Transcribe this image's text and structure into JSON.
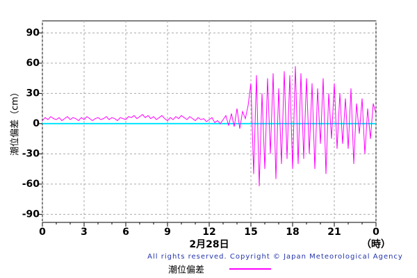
{
  "chart_data": {
    "type": "line",
    "y_label": "潮位偏差（cm）",
    "x_label": "2月28日",
    "x_unit": "（時）",
    "copyright": "All rights reserved. Copyright © Japan Meteorological Agency",
    "xlim": [
      0,
      24
    ],
    "ylim": [
      -98,
      102
    ],
    "xticks": [
      0,
      3,
      6,
      9,
      12,
      15,
      18,
      21,
      {
        "value": 24,
        "label": "0"
      }
    ],
    "xminorticks": [
      1,
      2,
      4,
      5,
      7,
      8,
      10,
      11,
      13,
      14,
      16,
      17,
      19,
      20,
      22,
      23
    ],
    "yticks": [
      -90,
      -60,
      -30,
      0,
      30,
      60,
      90
    ],
    "grid": true,
    "reference_line": 0,
    "reference_color": "#00e5ff",
    "x": [
      0,
      0.2,
      0.4,
      0.6,
      0.8,
      1,
      1.2,
      1.4,
      1.6,
      1.8,
      2,
      2.2,
      2.4,
      2.6,
      2.8,
      3,
      3.2,
      3.4,
      3.6,
      3.8,
      4,
      4.2,
      4.4,
      4.6,
      4.8,
      5,
      5.2,
      5.4,
      5.6,
      5.8,
      6,
      6.2,
      6.4,
      6.6,
      6.8,
      7,
      7.2,
      7.4,
      7.6,
      7.8,
      8,
      8.2,
      8.4,
      8.6,
      8.8,
      9,
      9.2,
      9.4,
      9.6,
      9.8,
      10,
      10.2,
      10.4,
      10.6,
      10.8,
      11,
      11.2,
      11.4,
      11.6,
      11.8,
      12,
      12.2,
      12.4,
      12.6,
      12.8,
      13,
      13.2,
      13.4,
      13.6,
      13.8,
      14,
      14.2,
      14.4,
      14.6,
      14.8,
      15,
      15.2,
      15.4,
      15.6,
      15.8,
      16,
      16.2,
      16.4,
      16.6,
      16.8,
      17,
      17.2,
      17.4,
      17.6,
      17.8,
      18,
      18.2,
      18.4,
      18.6,
      18.8,
      19,
      19.2,
      19.4,
      19.6,
      19.8,
      20,
      20.2,
      20.4,
      20.6,
      20.8,
      21,
      21.2,
      21.4,
      21.6,
      21.8,
      22,
      22.2,
      22.4,
      22.6,
      22.8,
      23,
      23.2,
      23.4,
      23.6,
      23.8,
      24
    ],
    "series": [
      {
        "name": "潮位偏差",
        "color": "#ff00ff",
        "values": [
          3,
          6,
          4,
          7,
          5,
          4,
          6,
          3,
          5,
          7,
          4,
          6,
          5,
          3,
          6,
          4,
          7,
          5,
          3,
          5,
          6,
          4,
          5,
          7,
          4,
          6,
          5,
          3,
          6,
          5,
          4,
          7,
          6,
          8,
          5,
          7,
          9,
          6,
          8,
          5,
          7,
          4,
          6,
          8,
          5,
          3,
          6,
          4,
          7,
          5,
          8,
          6,
          4,
          7,
          5,
          3,
          6,
          4,
          5,
          2,
          4,
          6,
          1,
          3,
          0,
          4,
          8,
          -2,
          10,
          -3,
          15,
          -5,
          12,
          5,
          18,
          40,
          -50,
          48,
          -62,
          30,
          -45,
          45,
          -30,
          50,
          -55,
          35,
          -40,
          52,
          -35,
          48,
          -45,
          57,
          -40,
          50,
          -35,
          45,
          -30,
          40,
          -45,
          35,
          -20,
          45,
          -50,
          30,
          -15,
          40,
          -25,
          30,
          -20,
          25,
          -25,
          35,
          -40,
          20,
          -10,
          25,
          -30,
          15,
          -15,
          20,
          10
        ]
      }
    ]
  }
}
